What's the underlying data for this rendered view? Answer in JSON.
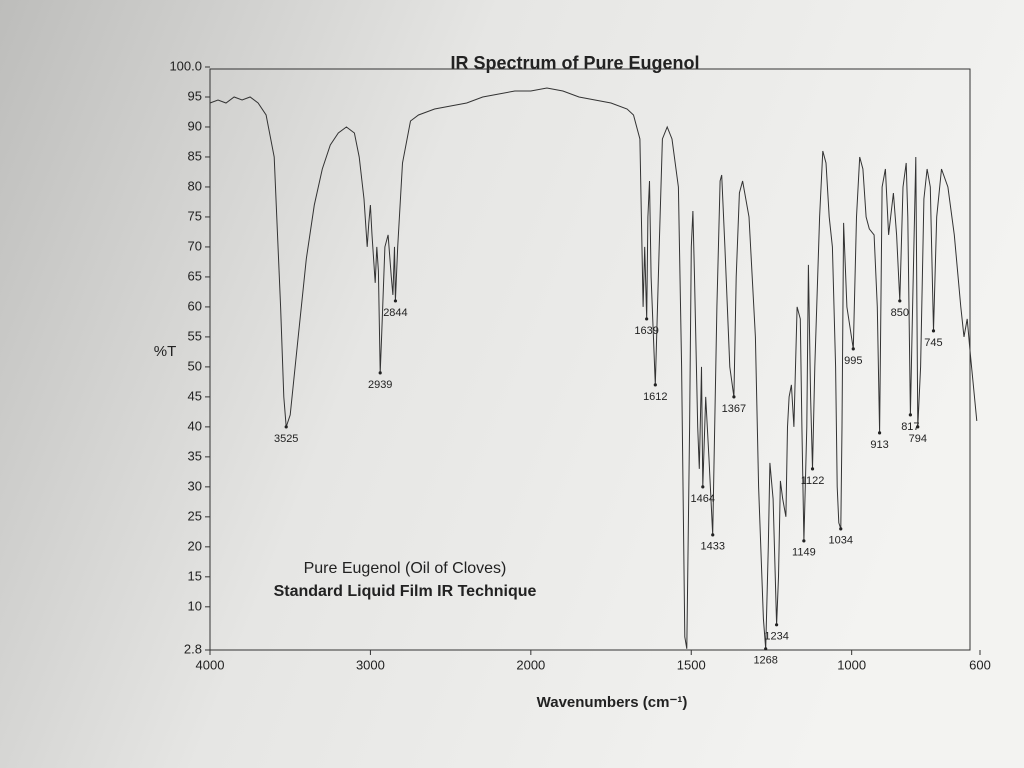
{
  "chart_data": {
    "type": "line",
    "title": "IR Spectrum of Pure Eugenol",
    "xlabel": "Wavenumbers (cm⁻¹)",
    "ylabel": "%T",
    "notes": [
      "Pure Eugenol (Oil of Cloves)",
      "Standard Liquid Film IR Technique"
    ],
    "xlim": [
      4000,
      600
    ],
    "xticks": [
      4000,
      3000,
      2000,
      1500,
      1000,
      600
    ],
    "xscale": {
      "type": "piecewise",
      "break": 2000,
      "factor": 2
    },
    "ylim": [
      2.8,
      100
    ],
    "yticks": [
      2.8,
      10,
      15,
      20,
      25,
      30,
      35,
      40,
      45,
      50,
      55,
      60,
      65,
      70,
      75,
      80,
      85,
      90,
      95,
      {
        "value": 100,
        "label": "100.0"
      }
    ],
    "grid": false,
    "series": [
      {
        "color": "#333333",
        "x": [
          4000,
          3950,
          3900,
          3850,
          3800,
          3750,
          3700,
          3650,
          3600,
          3560,
          3540,
          3525,
          3500,
          3450,
          3400,
          3350,
          3300,
          3250,
          3200,
          3150,
          3100,
          3070,
          3040,
          3020,
          3010,
          3000,
          2990,
          2970,
          2960,
          2950,
          2939,
          2930,
          2910,
          2890,
          2870,
          2860,
          2850,
          2844,
          2830,
          2800,
          2750,
          2700,
          2600,
          2500,
          2400,
          2300,
          2200,
          2100,
          2000,
          1950,
          1900,
          1850,
          1800,
          1750,
          1700,
          1680,
          1660,
          1650,
          1645,
          1639,
          1635,
          1630,
          1625,
          1612,
          1600,
          1590,
          1575,
          1560,
          1540,
          1530,
          1520,
          1514,
          1505,
          1500,
          1495,
          1490,
          1480,
          1475,
          1470,
          1468,
          1464,
          1455,
          1445,
          1433,
          1420,
          1410,
          1405,
          1395,
          1380,
          1367,
          1360,
          1350,
          1340,
          1320,
          1300,
          1290,
          1275,
          1268,
          1260,
          1255,
          1245,
          1234,
          1228,
          1222,
          1215,
          1205,
          1200,
          1195,
          1188,
          1180,
          1170,
          1160,
          1155,
          1149,
          1140,
          1135,
          1128,
          1122,
          1115,
          1100,
          1090,
          1080,
          1070,
          1060,
          1050,
          1045,
          1040,
          1034,
          1030,
          1025,
          1015,
          995,
          985,
          975,
          965,
          955,
          945,
          930,
          920,
          913,
          905,
          895,
          885,
          870,
          860,
          850,
          840,
          830,
          825,
          817,
          810,
          800,
          794,
          785,
          775,
          765,
          755,
          745,
          735,
          720,
          700,
          680,
          660,
          650,
          640,
          630,
          610
        ],
        "values": [
          94,
          94.5,
          94,
          95,
          94.5,
          95,
          94,
          92,
          85,
          60,
          45,
          40,
          42,
          55,
          68,
          77,
          83,
          87,
          89,
          90,
          89,
          85,
          78,
          70,
          74,
          77,
          72,
          64,
          70,
          66,
          49,
          55,
          70,
          72,
          65,
          62,
          70,
          61,
          70,
          84,
          91,
          92,
          93,
          93.5,
          94,
          95,
          95.5,
          96,
          96,
          96.5,
          96,
          95,
          94.5,
          94,
          93,
          92,
          88,
          60,
          70,
          58,
          75,
          81,
          65,
          47,
          70,
          88,
          90,
          88,
          80,
          50,
          5,
          3,
          40,
          70,
          76,
          65,
          40,
          33,
          45,
          50,
          30,
          45,
          35,
          22,
          60,
          81,
          82,
          70,
          50,
          45,
          65,
          79,
          81,
          75,
          55,
          30,
          8,
          3,
          20,
          34,
          28,
          7,
          15,
          31,
          28,
          25,
          40,
          45,
          47,
          40,
          60,
          58,
          40,
          21,
          40,
          67,
          45,
          33,
          50,
          75,
          86,
          84,
          75,
          70,
          50,
          30,
          24,
          23,
          40,
          74,
          60,
          53,
          75,
          85,
          83,
          75,
          73,
          72,
          60,
          39,
          80,
          83,
          72,
          79,
          72,
          61,
          80,
          84,
          75,
          42,
          60,
          85,
          40,
          50,
          78,
          83,
          80,
          56,
          75,
          83,
          80,
          72,
          60,
          55,
          58,
          52,
          41
        ]
      }
    ],
    "annotations": [
      {
        "x": 3525,
        "y": 40
      },
      {
        "x": 2939,
        "y": 49
      },
      {
        "x": 2844,
        "y": 61
      },
      {
        "x": 1639,
        "y": 58
      },
      {
        "x": 1612,
        "y": 47
      },
      {
        "x": 1464,
        "y": 30
      },
      {
        "x": 1433,
        "y": 22
      },
      {
        "x": 1367,
        "y": 45
      },
      {
        "x": 1268,
        "y": 3
      },
      {
        "x": 1234,
        "y": 7
      },
      {
        "x": 1149,
        "y": 21
      },
      {
        "x": 1122,
        "y": 33
      },
      {
        "x": 1034,
        "y": 23
      },
      {
        "x": 995,
        "y": 53
      },
      {
        "x": 913,
        "y": 39
      },
      {
        "x": 850,
        "y": 61
      },
      {
        "x": 817,
        "y": 42
      },
      {
        "x": 794,
        "y": 40
      },
      {
        "x": 745,
        "y": 56
      }
    ]
  }
}
